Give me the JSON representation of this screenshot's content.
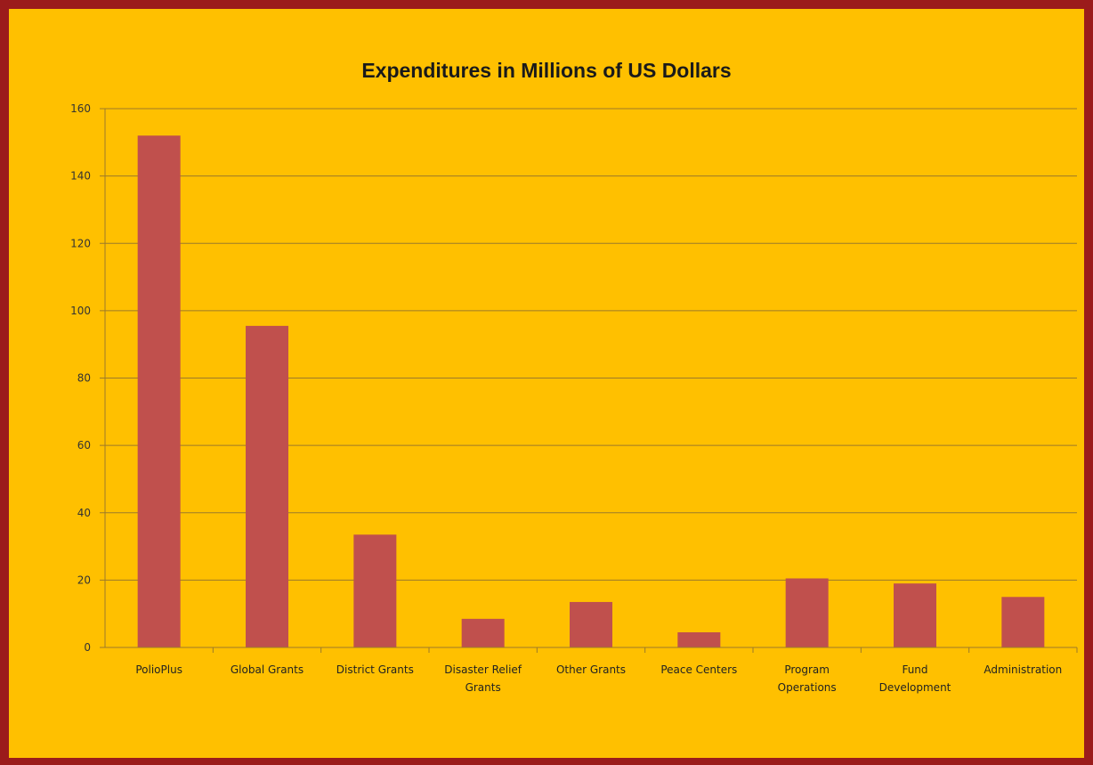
{
  "colors": {
    "background": "#FFC000",
    "border": "#9B1B1B",
    "bar": "#C0504D",
    "gridline": "#9C7A2A"
  },
  "chart_data": {
    "type": "bar",
    "title": "Expenditures in Millions of US Dollars",
    "xlabel": "",
    "ylabel": "",
    "categories": [
      [
        "PolioPlus"
      ],
      [
        "Global Grants"
      ],
      [
        "District Grants"
      ],
      [
        "Disaster Relief",
        "Grants"
      ],
      [
        "Other Grants"
      ],
      [
        "Peace Centers"
      ],
      [
        "Program",
        "Operations"
      ],
      [
        "Fund",
        "Development"
      ],
      [
        "Administration"
      ]
    ],
    "values": [
      152,
      95.5,
      33.5,
      8.5,
      13.5,
      4.5,
      20.5,
      19,
      15
    ],
    "ylim": [
      0,
      160
    ],
    "yticks": [
      0,
      20,
      40,
      60,
      80,
      100,
      120,
      140,
      160
    ],
    "grid": true,
    "legend": "none"
  }
}
